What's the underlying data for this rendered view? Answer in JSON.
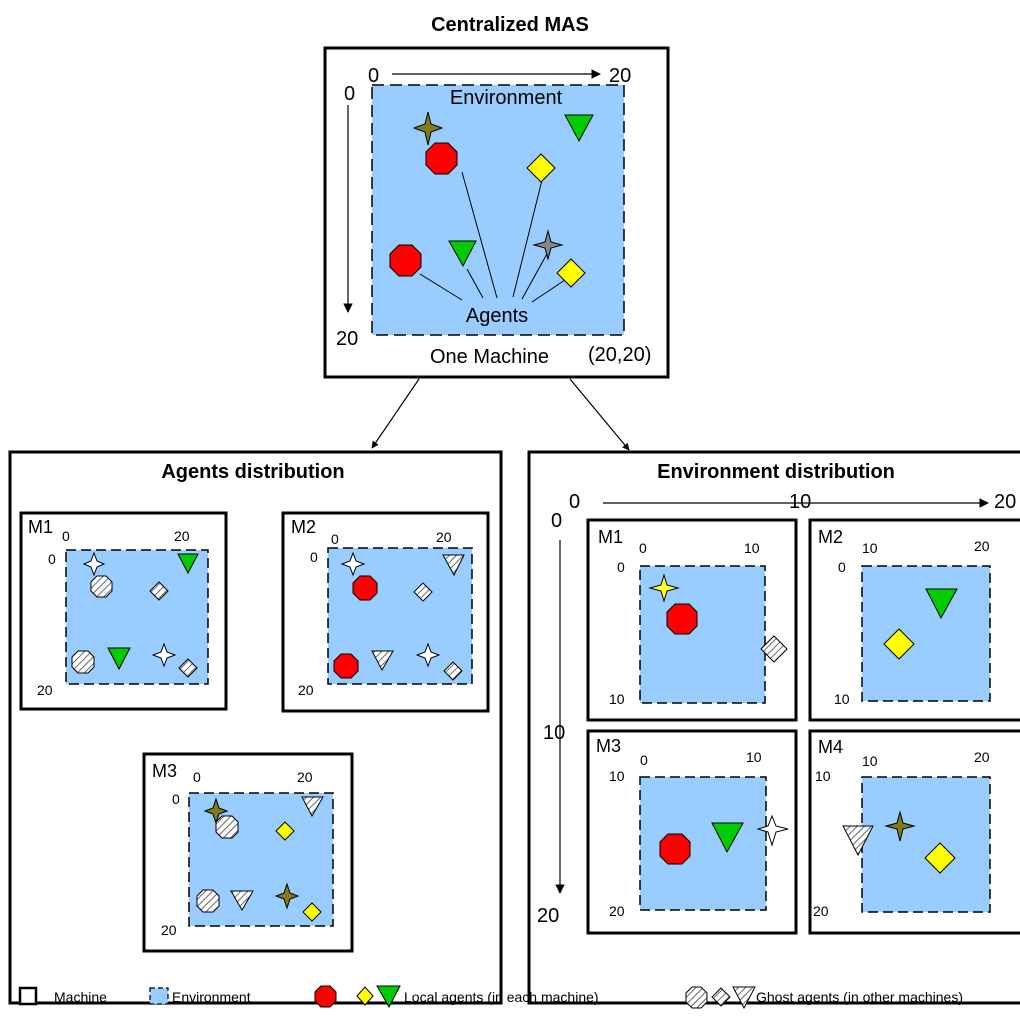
{
  "colors": {
    "environment": "#99ccff",
    "local_octagon": "#ff0000",
    "local_diamond": "#ffff00",
    "local_triangle": "#00cc00",
    "star_olive": "#807a1c",
    "star_gray": "#888888",
    "star_yellow": "#ffff33",
    "ghost_hatch": "#444444"
  },
  "top": {
    "title": "Centralized MAS",
    "axis_x_start": "0",
    "axis_x_end": "20",
    "axis_y_start": "0",
    "axis_y_end": "20",
    "environment_label": "Environment",
    "agents_label": "Agents",
    "machine_label": "One Machine",
    "corner_label": "(20,20)"
  },
  "agents_distribution": {
    "title": "Agents distribution",
    "machines": [
      {
        "name": "M1",
        "x0": "0",
        "x1": "20",
        "y0": "0",
        "y1": "20"
      },
      {
        "name": "M2",
        "x0": "0",
        "x1": "20",
        "y0": "0",
        "y1": "20"
      },
      {
        "name": "M3",
        "x0": "0",
        "x1": "20",
        "y0": "0",
        "y1": "20"
      }
    ]
  },
  "environment_distribution": {
    "title": "Environment distribution",
    "axis_x": [
      "0",
      "10",
      "20"
    ],
    "axis_y": [
      "0",
      "10",
      "20"
    ],
    "machines": [
      {
        "name": "M1",
        "x0": "0",
        "x1": "10",
        "y0": "0",
        "y1": "10"
      },
      {
        "name": "M2",
        "x0": "10",
        "x1": "20",
        "y0": "0",
        "y1": "10"
      },
      {
        "name": "M3",
        "x0": "0",
        "x1": "10",
        "y0": "10",
        "y1": "20"
      },
      {
        "name": "M4",
        "x0": "10",
        "x1": "20",
        "y0": "10",
        "y1": "20"
      }
    ]
  },
  "legend": {
    "machine": "Machine",
    "environment": "Environment",
    "local": "Local agents (in each machine)",
    "ghost": "Ghost agents (in other machines)"
  }
}
